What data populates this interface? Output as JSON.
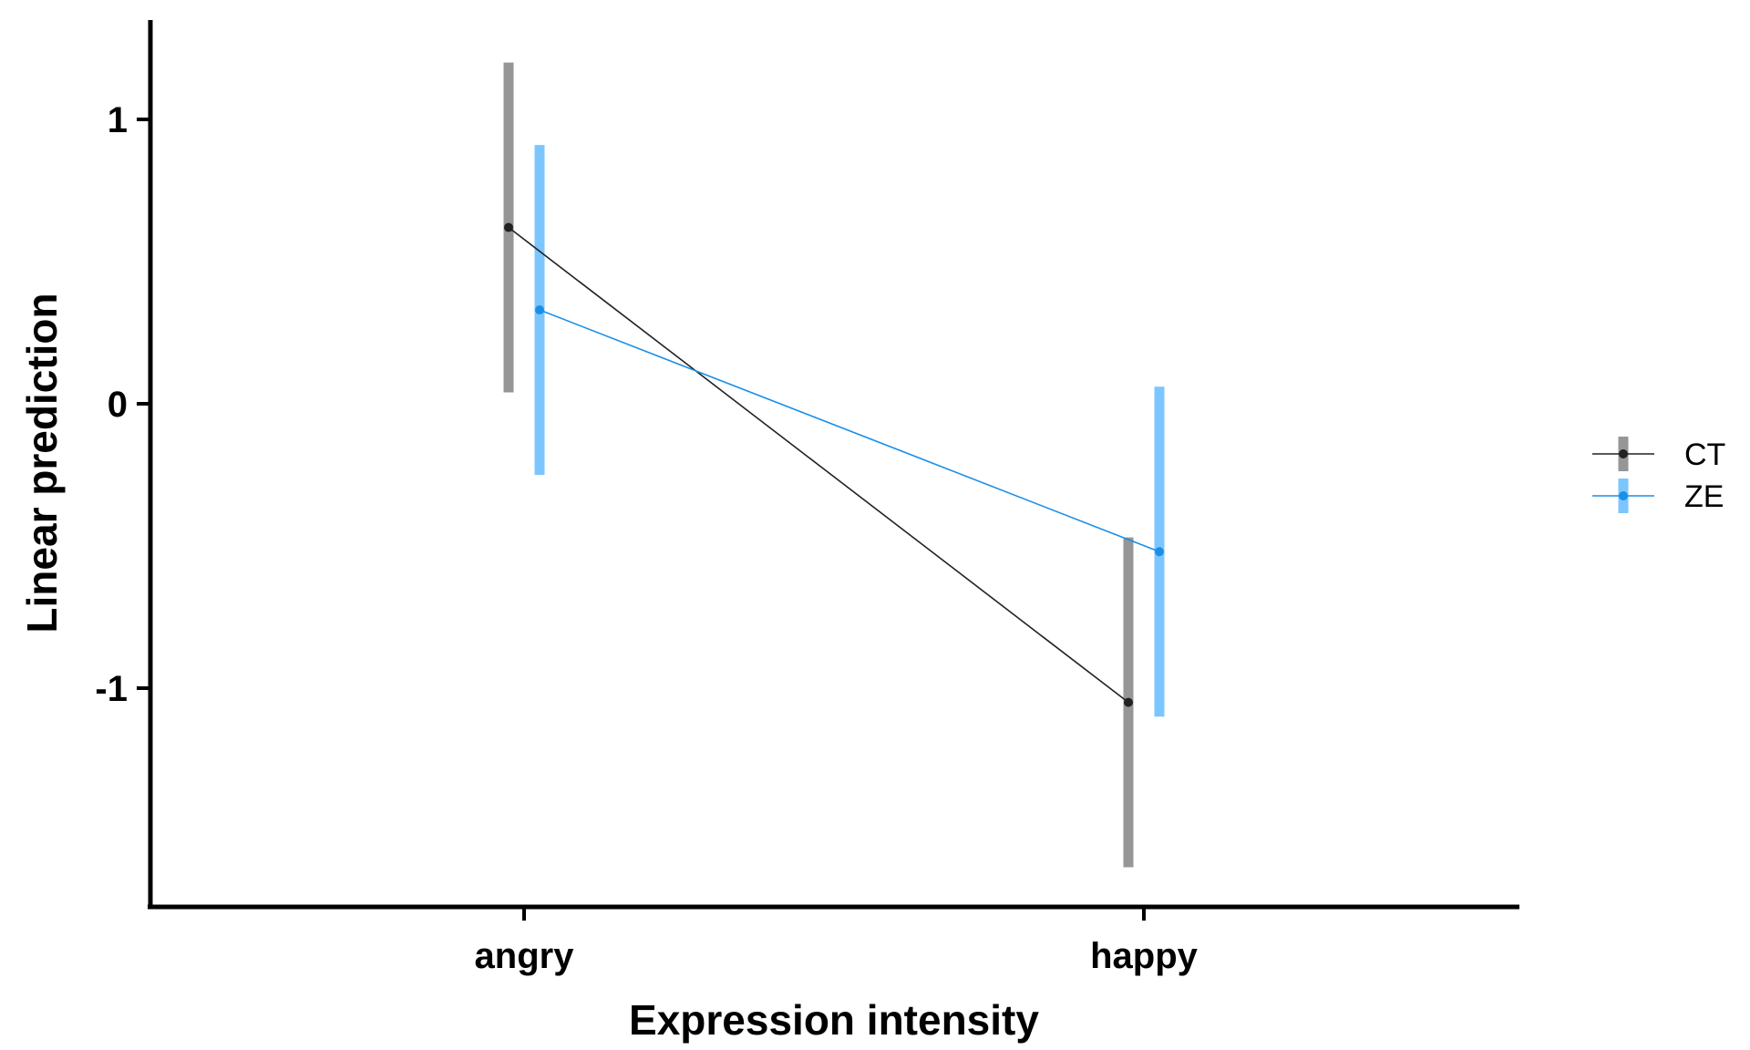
{
  "chart_data": {
    "type": "line",
    "title": "",
    "xlabel": "Expression intensity",
    "ylabel": "Linear prediction",
    "categories": [
      "angry",
      "happy"
    ],
    "yticks": [
      1,
      0,
      -1
    ],
    "ytick_labels": [
      "1",
      "0",
      "-1"
    ],
    "ylim": [
      -1.77,
      1.35
    ],
    "grid": false,
    "legend_position": "right",
    "series": [
      {
        "name": "CT",
        "color": "#222222",
        "ci_color": "#969696",
        "values": [
          0.62,
          -1.05
        ],
        "ci_low": [
          0.04,
          -1.63
        ],
        "ci_high": [
          1.2,
          -0.47
        ]
      },
      {
        "name": "ZE",
        "color": "#1a8fe8",
        "ci_color": "#7cc6ff",
        "values": [
          0.33,
          -0.52
        ],
        "ci_low": [
          -0.25,
          -1.1
        ],
        "ci_high": [
          0.91,
          0.06
        ]
      }
    ]
  }
}
